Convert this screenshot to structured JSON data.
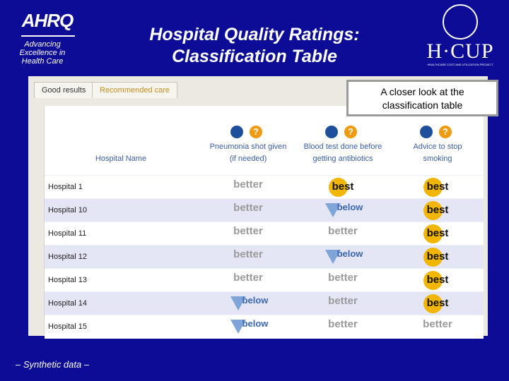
{
  "header": {
    "logo_left": "AHRQ",
    "tagline": [
      "Advancing",
      "Excellence in",
      "Health Care"
    ],
    "title": [
      "Hospital Quality Ratings:",
      "Classification Table"
    ],
    "logo_right": "H·CUP",
    "logo_right_sub": "HEALTHCARE COST AND UTILIZATION PROJECT"
  },
  "callout": [
    "A closer look at the",
    "classification table"
  ],
  "tabs": [
    "Good results",
    "Recommended care"
  ],
  "help_icon": "?",
  "table": {
    "columns": [
      [
        "Hospital Name"
      ],
      [
        "Pneumonia shot given",
        "(if needed)"
      ],
      [
        "Blood test done before",
        "getting antibiotics"
      ],
      [
        "Advice to stop",
        "smoking"
      ]
    ],
    "rows": [
      [
        "Hospital 1",
        "better",
        "best",
        "best"
      ],
      [
        "Hospital 10",
        "better",
        "below",
        "best"
      ],
      [
        "Hospital 11",
        "better",
        "better",
        "best"
      ],
      [
        "Hospital 12",
        "better",
        "below",
        "best"
      ],
      [
        "Hospital 13",
        "better",
        "better",
        "best"
      ],
      [
        "Hospital 14",
        "below",
        "better",
        "best"
      ],
      [
        "Hospital 15",
        "below",
        "better",
        "better"
      ]
    ]
  },
  "footer": "– Synthetic data –"
}
